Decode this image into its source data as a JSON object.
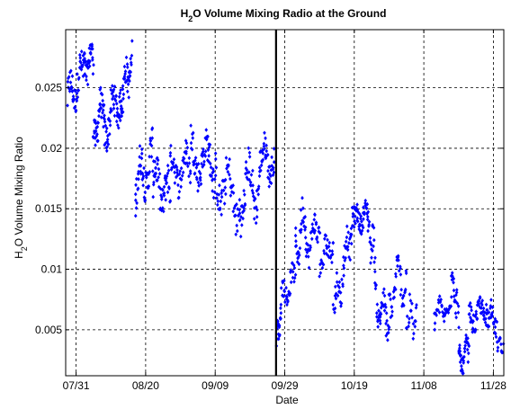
{
  "chart_data": {
    "type": "scatter",
    "title": "H2O Volume Mixing Radio at the Ground",
    "title_parts": {
      "pre": "H",
      "sub": "2",
      "post": "O Volume Mixing Radio at the Ground"
    },
    "xlabel": "Date",
    "ylabel": "H2O Volume Mixing Ratio",
    "ylabel_parts": {
      "pre": "H",
      "sub": "2",
      "post": "O Volume Mixing Ratio"
    },
    "x_tick_labels": [
      "07/31",
      "08/20",
      "09/09",
      "09/29",
      "10/19",
      "11/08",
      "11/28"
    ],
    "x_tick_days": [
      0,
      20,
      40,
      60,
      80,
      100,
      120
    ],
    "x_range_days_relative_to_07_31": [
      -3,
      123
    ],
    "y_ticks": [
      0.005,
      0.01,
      0.015,
      0.02,
      0.025
    ],
    "y_tick_labels": [
      "0.005",
      "0.01",
      "0.015",
      "0.02",
      "0.025"
    ],
    "ylim": [
      0.0012,
      0.0298
    ],
    "grid": true,
    "legend": "none",
    "vertical_marker_day": 57.5,
    "point_color": "#0000ff",
    "series_trend": [
      {
        "start": -2.5,
        "end": 2,
        "points": 45,
        "y0": 0.024,
        "y1": 0.0262,
        "amp": 0.0012,
        "noise": 0.0012
      },
      {
        "start": 2,
        "end": 5,
        "points": 35,
        "y0": 0.0262,
        "y1": 0.0278,
        "amp": 0.0008,
        "noise": 0.0011
      },
      {
        "start": 5,
        "end": 8,
        "points": 40,
        "y0": 0.021,
        "y1": 0.024,
        "amp": 0.001,
        "noise": 0.0013
      },
      {
        "start": 8,
        "end": 13,
        "points": 60,
        "y0": 0.0215,
        "y1": 0.0245,
        "amp": 0.0012,
        "noise": 0.0013
      },
      {
        "start": 13,
        "end": 16,
        "points": 40,
        "y0": 0.0245,
        "y1": 0.027,
        "amp": 0.001,
        "noise": 0.0012
      },
      {
        "start": 17,
        "end": 22,
        "points": 55,
        "y0": 0.017,
        "y1": 0.019,
        "amp": 0.0016,
        "noise": 0.0014
      },
      {
        "start": 22,
        "end": 27,
        "points": 55,
        "y0": 0.0175,
        "y1": 0.016,
        "amp": 0.0014,
        "noise": 0.0014
      },
      {
        "start": 27,
        "end": 33,
        "points": 50,
        "y0": 0.018,
        "y1": 0.0185,
        "amp": 0.0012,
        "noise": 0.0012
      },
      {
        "start": 33,
        "end": 40,
        "points": 70,
        "y0": 0.0195,
        "y1": 0.0185,
        "amp": 0.0015,
        "noise": 0.0013
      },
      {
        "start": 40,
        "end": 47,
        "points": 55,
        "y0": 0.0175,
        "y1": 0.0155,
        "amp": 0.0017,
        "noise": 0.0015
      },
      {
        "start": 47,
        "end": 53,
        "points": 55,
        "y0": 0.016,
        "y1": 0.0175,
        "amp": 0.002,
        "noise": 0.0015
      },
      {
        "start": 53,
        "end": 57,
        "points": 40,
        "y0": 0.02,
        "y1": 0.018,
        "amp": 0.001,
        "noise": 0.001
      },
      {
        "start": 57.6,
        "end": 59,
        "points": 20,
        "y0": 0.0045,
        "y1": 0.006,
        "amp": 0.0006,
        "noise": 0.0006
      },
      {
        "start": 59,
        "end": 63,
        "points": 35,
        "y0": 0.0075,
        "y1": 0.0095,
        "amp": 0.0008,
        "noise": 0.0008
      },
      {
        "start": 63,
        "end": 66,
        "points": 30,
        "y0": 0.011,
        "y1": 0.015,
        "amp": 0.0012,
        "noise": 0.0012
      },
      {
        "start": 66,
        "end": 70,
        "points": 35,
        "y0": 0.0115,
        "y1": 0.014,
        "amp": 0.001,
        "noise": 0.001
      },
      {
        "start": 70,
        "end": 74,
        "points": 30,
        "y0": 0.0105,
        "y1": 0.0125,
        "amp": 0.0008,
        "noise": 0.001
      },
      {
        "start": 74,
        "end": 77,
        "points": 25,
        "y0": 0.0075,
        "y1": 0.009,
        "amp": 0.001,
        "noise": 0.001
      },
      {
        "start": 77,
        "end": 80,
        "points": 30,
        "y0": 0.011,
        "y1": 0.014,
        "amp": 0.001,
        "noise": 0.001
      },
      {
        "start": 80,
        "end": 84,
        "points": 45,
        "y0": 0.014,
        "y1": 0.0145,
        "amp": 0.0006,
        "noise": 0.0008
      },
      {
        "start": 84,
        "end": 86,
        "points": 20,
        "y0": 0.013,
        "y1": 0.0115,
        "amp": 0.001,
        "noise": 0.001
      },
      {
        "start": 86,
        "end": 90,
        "points": 40,
        "y0": 0.0075,
        "y1": 0.0055,
        "amp": 0.0012,
        "noise": 0.001
      },
      {
        "start": 90,
        "end": 95,
        "points": 40,
        "y0": 0.008,
        "y1": 0.0095,
        "amp": 0.0015,
        "noise": 0.0012
      },
      {
        "start": 95,
        "end": 98,
        "points": 20,
        "y0": 0.0065,
        "y1": 0.0055,
        "amp": 0.001,
        "noise": 0.001
      },
      {
        "start": 103,
        "end": 108,
        "points": 35,
        "y0": 0.0062,
        "y1": 0.007,
        "amp": 0.0006,
        "noise": 0.0008
      },
      {
        "start": 108,
        "end": 110,
        "points": 20,
        "y0": 0.0095,
        "y1": 0.006,
        "amp": 0.001,
        "noise": 0.001
      },
      {
        "start": 110,
        "end": 113,
        "points": 40,
        "y0": 0.002,
        "y1": 0.0035,
        "amp": 0.0008,
        "noise": 0.0008
      },
      {
        "start": 113,
        "end": 118,
        "points": 50,
        "y0": 0.006,
        "y1": 0.0065,
        "amp": 0.0008,
        "noise": 0.0008
      },
      {
        "start": 118,
        "end": 121,
        "points": 30,
        "y0": 0.007,
        "y1": 0.0055,
        "amp": 0.0008,
        "noise": 0.0008
      },
      {
        "start": 121,
        "end": 122.8,
        "points": 12,
        "y0": 0.004,
        "y1": 0.0035,
        "amp": 0.0004,
        "noise": 0.0004
      }
    ]
  }
}
